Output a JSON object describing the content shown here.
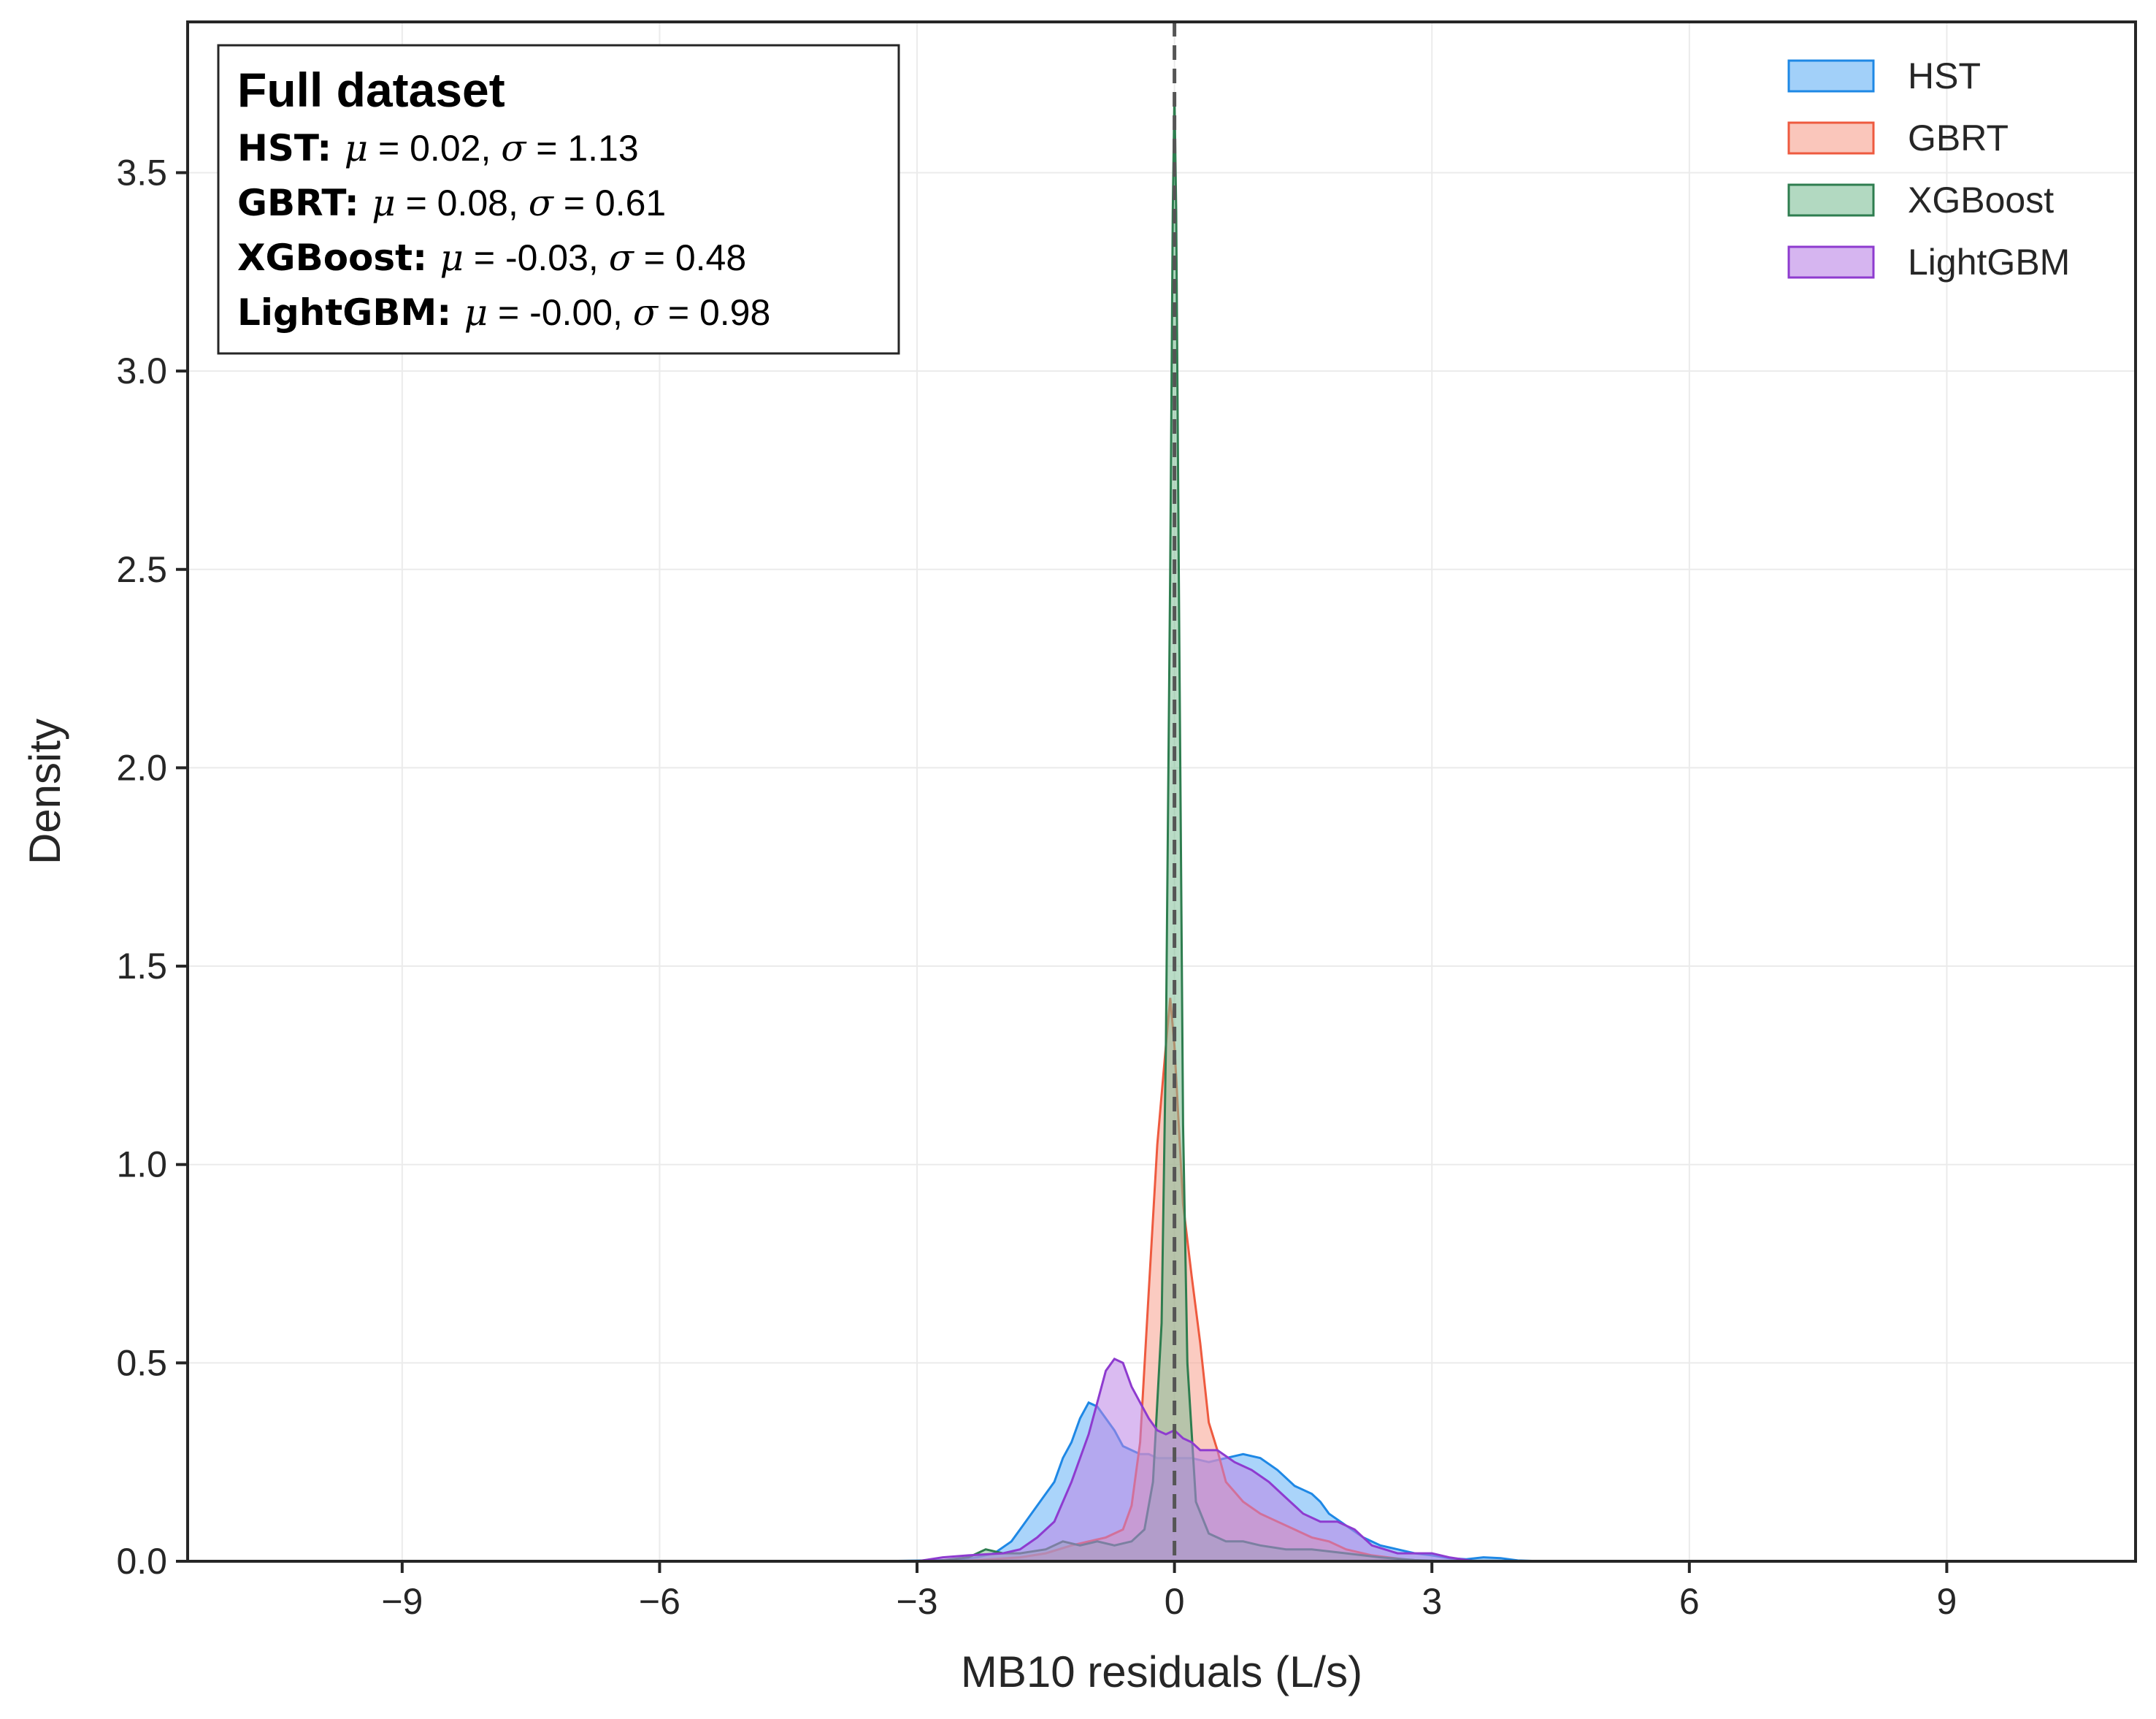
{
  "chart_data": {
    "type": "area",
    "xlabel": "MB10 residuals (L/s)",
    "ylabel": "Density",
    "xlim": [
      -11.5,
      11.2
    ],
    "ylim": [
      0,
      3.88
    ],
    "xticks": [
      -9,
      -6,
      -3,
      0,
      3,
      6,
      9
    ],
    "xtick_labels": [
      "−9",
      "−6",
      "−3",
      "0",
      "3",
      "6",
      "9"
    ],
    "yticks": [
      0.0,
      0.5,
      1.0,
      1.5,
      2.0,
      2.5,
      3.0,
      3.5
    ],
    "ytick_labels": [
      "0.0",
      "0.5",
      "1.0",
      "1.5",
      "2.0",
      "2.5",
      "3.0",
      "3.5"
    ],
    "grid": true,
    "legend_position": "top-right",
    "reference_line": {
      "x": 0,
      "style": "dashed",
      "color": "#555555"
    },
    "stats_box": {
      "title": "Full dataset",
      "entries": [
        {
          "name": "HST",
          "mu": "0.02",
          "sigma": "1.13"
        },
        {
          "name": "GBRT",
          "mu": "0.08",
          "sigma": "0.61"
        },
        {
          "name": "XGBoost",
          "mu": "-0.03",
          "sigma": "0.48"
        },
        {
          "name": "LightGBM",
          "mu": "-0.00",
          "sigma": "0.98"
        }
      ],
      "mu_symbol": "μ",
      "sigma_symbol": "σ",
      "equals": "="
    },
    "series": [
      {
        "name": "HST",
        "line_color": "#1e88e5",
        "fill_color": "#64b0f5",
        "points": [
          [
            -3.5,
            0
          ],
          [
            -2.6,
            0.003
          ],
          [
            -2.3,
            0.01
          ],
          [
            -2.1,
            0.02
          ],
          [
            -1.9,
            0.05
          ],
          [
            -1.8,
            0.08
          ],
          [
            -1.6,
            0.14
          ],
          [
            -1.5,
            0.17
          ],
          [
            -1.4,
            0.2
          ],
          [
            -1.3,
            0.26
          ],
          [
            -1.2,
            0.3
          ],
          [
            -1.1,
            0.36
          ],
          [
            -1.0,
            0.4
          ],
          [
            -0.9,
            0.39
          ],
          [
            -0.8,
            0.36
          ],
          [
            -0.7,
            0.33
          ],
          [
            -0.6,
            0.29
          ],
          [
            -0.5,
            0.28
          ],
          [
            -0.4,
            0.27
          ],
          [
            -0.3,
            0.27
          ],
          [
            -0.2,
            0.26
          ],
          [
            -0.1,
            0.26
          ],
          [
            0,
            0.26
          ],
          [
            0.1,
            0.26
          ],
          [
            0.2,
            0.26
          ],
          [
            0.4,
            0.25
          ],
          [
            0.6,
            0.26
          ],
          [
            0.8,
            0.27
          ],
          [
            1.0,
            0.26
          ],
          [
            1.2,
            0.23
          ],
          [
            1.4,
            0.19
          ],
          [
            1.6,
            0.17
          ],
          [
            1.7,
            0.15
          ],
          [
            1.8,
            0.12
          ],
          [
            2.0,
            0.09
          ],
          [
            2.2,
            0.06
          ],
          [
            2.4,
            0.04
          ],
          [
            2.6,
            0.03
          ],
          [
            2.8,
            0.02
          ],
          [
            3.0,
            0.015
          ],
          [
            3.2,
            0.008
          ],
          [
            3.4,
            0.005
          ],
          [
            3.6,
            0.01
          ],
          [
            3.8,
            0.008
          ],
          [
            4.0,
            0.002
          ],
          [
            4.3,
            0
          ]
        ]
      },
      {
        "name": "GBRT",
        "line_color": "#ee5a3f",
        "fill_color": "#f7a08e",
        "points": [
          [
            -2.5,
            0
          ],
          [
            -1.8,
            0.01
          ],
          [
            -1.5,
            0.02
          ],
          [
            -1.2,
            0.04
          ],
          [
            -1.0,
            0.05
          ],
          [
            -0.8,
            0.06
          ],
          [
            -0.6,
            0.08
          ],
          [
            -0.5,
            0.14
          ],
          [
            -0.4,
            0.3
          ],
          [
            -0.3,
            0.68
          ],
          [
            -0.2,
            1.05
          ],
          [
            -0.1,
            1.3
          ],
          [
            -0.05,
            1.42
          ],
          [
            0,
            1.3
          ],
          [
            0.1,
            0.9
          ],
          [
            0.2,
            0.72
          ],
          [
            0.3,
            0.55
          ],
          [
            0.4,
            0.35
          ],
          [
            0.5,
            0.28
          ],
          [
            0.6,
            0.2
          ],
          [
            0.8,
            0.15
          ],
          [
            1.0,
            0.12
          ],
          [
            1.2,
            0.1
          ],
          [
            1.4,
            0.08
          ],
          [
            1.6,
            0.06
          ],
          [
            1.8,
            0.05
          ],
          [
            2.0,
            0.03
          ],
          [
            2.3,
            0.015
          ],
          [
            2.7,
            0.004
          ],
          [
            3.0,
            0
          ]
        ]
      },
      {
        "name": "XGBoost",
        "line_color": "#2e7d4f",
        "fill_color": "#7fbf97",
        "points": [
          [
            -2.8,
            0
          ],
          [
            -2.4,
            0.01
          ],
          [
            -2.2,
            0.03
          ],
          [
            -2.0,
            0.02
          ],
          [
            -1.8,
            0.02
          ],
          [
            -1.5,
            0.03
          ],
          [
            -1.3,
            0.05
          ],
          [
            -1.1,
            0.04
          ],
          [
            -0.9,
            0.05
          ],
          [
            -0.7,
            0.04
          ],
          [
            -0.5,
            0.05
          ],
          [
            -0.35,
            0.08
          ],
          [
            -0.25,
            0.2
          ],
          [
            -0.15,
            0.6
          ],
          [
            -0.1,
            1.3
          ],
          [
            -0.05,
            2.5
          ],
          [
            -0.02,
            3.4
          ],
          [
            0,
            3.7
          ],
          [
            0.02,
            3.4
          ],
          [
            0.05,
            2.5
          ],
          [
            0.1,
            1.1
          ],
          [
            0.15,
            0.5
          ],
          [
            0.25,
            0.15
          ],
          [
            0.4,
            0.07
          ],
          [
            0.6,
            0.05
          ],
          [
            0.8,
            0.05
          ],
          [
            1.0,
            0.04
          ],
          [
            1.3,
            0.03
          ],
          [
            1.6,
            0.03
          ],
          [
            2.0,
            0.02
          ],
          [
            2.4,
            0.01
          ],
          [
            2.8,
            0.003
          ],
          [
            3.2,
            0
          ]
        ]
      },
      {
        "name": "LightGBM",
        "line_color": "#8e3bcf",
        "fill_color": "#bb84e6",
        "points": [
          [
            -3.0,
            0
          ],
          [
            -2.7,
            0.01
          ],
          [
            -2.4,
            0.015
          ],
          [
            -2.0,
            0.02
          ],
          [
            -1.8,
            0.03
          ],
          [
            -1.6,
            0.06
          ],
          [
            -1.4,
            0.1
          ],
          [
            -1.2,
            0.2
          ],
          [
            -1.0,
            0.32
          ],
          [
            -0.9,
            0.4
          ],
          [
            -0.8,
            0.48
          ],
          [
            -0.7,
            0.51
          ],
          [
            -0.6,
            0.5
          ],
          [
            -0.5,
            0.44
          ],
          [
            -0.4,
            0.4
          ],
          [
            -0.3,
            0.36
          ],
          [
            -0.2,
            0.33
          ],
          [
            -0.1,
            0.32
          ],
          [
            0,
            0.33
          ],
          [
            0.1,
            0.31
          ],
          [
            0.2,
            0.3
          ],
          [
            0.3,
            0.28
          ],
          [
            0.5,
            0.28
          ],
          [
            0.7,
            0.25
          ],
          [
            0.9,
            0.23
          ],
          [
            1.1,
            0.2
          ],
          [
            1.3,
            0.16
          ],
          [
            1.5,
            0.12
          ],
          [
            1.7,
            0.1
          ],
          [
            1.9,
            0.1
          ],
          [
            2.1,
            0.08
          ],
          [
            2.3,
            0.04
          ],
          [
            2.6,
            0.02
          ],
          [
            3.0,
            0.02
          ],
          [
            3.2,
            0.01
          ],
          [
            3.5,
            0
          ]
        ]
      }
    ]
  }
}
